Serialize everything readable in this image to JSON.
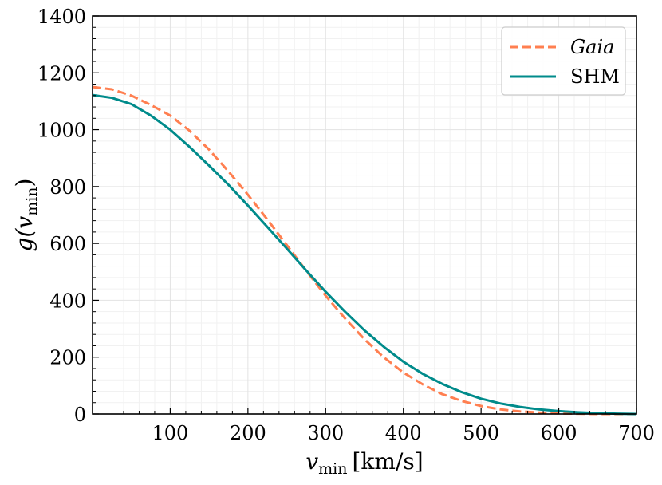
{
  "chart_data": {
    "type": "line",
    "xlabel": "v_min [km/s]",
    "xlabel_main": "v",
    "xlabel_sub": "min",
    "xlabel_unit": "[km/s]",
    "ylabel": "g(v_min)",
    "ylabel_main": "g(v",
    "ylabel_sub": "min",
    "ylabel_close": ")",
    "xlim": [
      0,
      700
    ],
    "ylim": [
      0,
      1400
    ],
    "x_ticks": [
      100,
      200,
      300,
      400,
      500,
      600,
      700
    ],
    "y_ticks": [
      0,
      200,
      400,
      600,
      800,
      1000,
      1200,
      1400
    ],
    "grid": true,
    "legend_position": "top-right",
    "series": [
      {
        "name": "Gaia",
        "style": "dashed",
        "color": "#ff7f50",
        "x": [
          0,
          25,
          50,
          75,
          100,
          125,
          150,
          175,
          200,
          225,
          250,
          275,
          300,
          325,
          350,
          375,
          400,
          425,
          450,
          475,
          500,
          525,
          550,
          575,
          600,
          625,
          650,
          675,
          700
        ],
        "y": [
          1150,
          1142,
          1120,
          1087,
          1050,
          996,
          930,
          853,
          771,
          684,
          594,
          504,
          416,
          336,
          263,
          199,
          146,
          104,
          70,
          46,
          28,
          16,
          9,
          5,
          2,
          1,
          0,
          0,
          0
        ]
      },
      {
        "name": "SHM",
        "style": "solid",
        "color": "#008b8b",
        "x": [
          0,
          25,
          50,
          75,
          100,
          125,
          150,
          175,
          200,
          225,
          250,
          275,
          300,
          325,
          350,
          375,
          400,
          425,
          450,
          475,
          500,
          525,
          550,
          575,
          600,
          625,
          650,
          675,
          700
        ],
        "y": [
          1122,
          1112,
          1090,
          1050,
          1000,
          939,
          874,
          806,
          733,
          658,
          582,
          505,
          430,
          360,
          294,
          236,
          184,
          141,
          106,
          77,
          54,
          37,
          25,
          16,
          10,
          6,
          3,
          1,
          0
        ]
      }
    ]
  }
}
